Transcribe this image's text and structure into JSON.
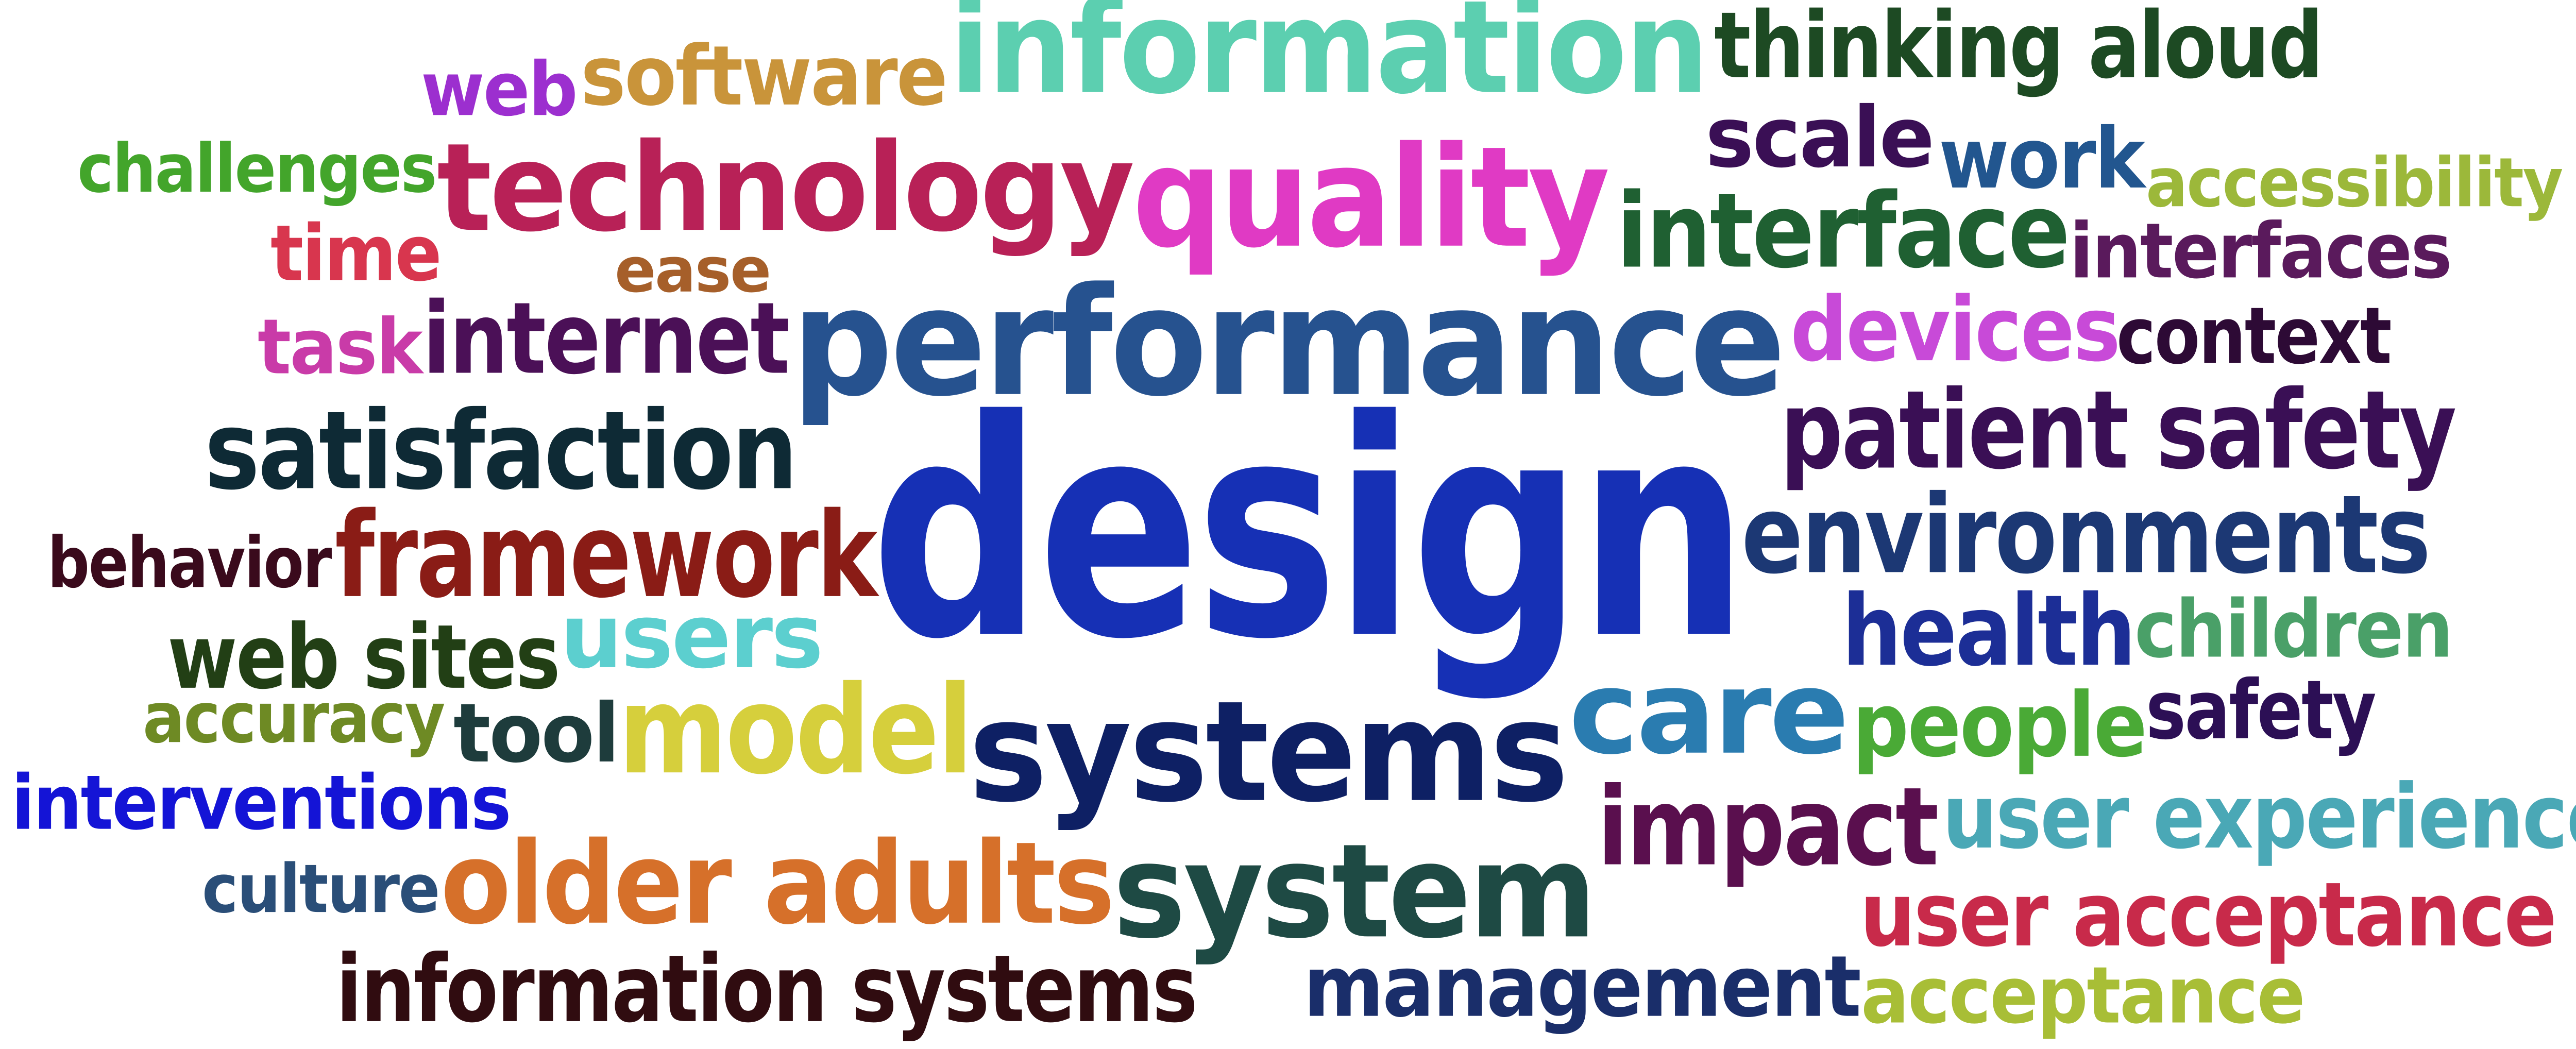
{
  "words": [
    {
      "text": "information",
      "color": "#5ccfb0"
    },
    {
      "text": "thinking aloud",
      "color": "#1d4a23"
    },
    {
      "text": "software",
      "color": "#c9943a"
    },
    {
      "text": "web",
      "color": "#9c2fcf"
    },
    {
      "text": "scale",
      "color": "#3a0f55"
    },
    {
      "text": "work",
      "color": "#22568f"
    },
    {
      "text": "accessibility",
      "color": "#9cb83a"
    },
    {
      "text": "challenges",
      "color": "#43a52b"
    },
    {
      "text": "technology",
      "color": "#b82157"
    },
    {
      "text": "quality",
      "color": "#e03ac4"
    },
    {
      "text": "interface",
      "color": "#1f6032"
    },
    {
      "text": "interfaces",
      "color": "#5a1a5c"
    },
    {
      "text": "time",
      "color": "#d8364e"
    },
    {
      "text": "ease",
      "color": "#a65f2a"
    },
    {
      "text": "task",
      "color": "#c93ba8"
    },
    {
      "text": "internet",
      "color": "#4b1057"
    },
    {
      "text": "performance",
      "color": "#26528f"
    },
    {
      "text": "devices",
      "color": "#c84ad8"
    },
    {
      "text": "context",
      "color": "#2d0a35"
    },
    {
      "text": "satisfaction",
      "color": "#0e2a35"
    },
    {
      "text": "patient safety",
      "color": "#3a0f55"
    },
    {
      "text": "design",
      "color": "#1630b5"
    },
    {
      "text": "behavior",
      "color": "#3a0a1c"
    },
    {
      "text": "framework",
      "color": "#8a1c16"
    },
    {
      "text": "environments",
      "color": "#1c3874"
    },
    {
      "text": "web sites",
      "color": "#223f15"
    },
    {
      "text": "users",
      "color": "#5ccfcf"
    },
    {
      "text": "health",
      "color": "#1c2e96"
    },
    {
      "text": "children",
      "color": "#4aa068"
    },
    {
      "text": "accuracy",
      "color": "#6e8a24"
    },
    {
      "text": "tool",
      "color": "#1e3c3c"
    },
    {
      "text": "model",
      "color": "#d6cf3c"
    },
    {
      "text": "systems",
      "color": "#0e2064"
    },
    {
      "text": "care",
      "color": "#2a7cb0"
    },
    {
      "text": "people",
      "color": "#4aaa36"
    },
    {
      "text": "safety",
      "color": "#2c0f55"
    },
    {
      "text": "interventions",
      "color": "#1414d6"
    },
    {
      "text": "impact",
      "color": "#5a0f4e"
    },
    {
      "text": "user experience",
      "color": "#4aa8b6"
    },
    {
      "text": "culture",
      "color": "#2a4e78"
    },
    {
      "text": "older adults",
      "color": "#d6702a"
    },
    {
      "text": "system",
      "color": "#1e4a44"
    },
    {
      "text": "user acceptance",
      "color": "#c82a4a"
    },
    {
      "text": "information systems",
      "color": "#300c10"
    },
    {
      "text": "management",
      "color": "#1a2e6a"
    },
    {
      "text": "acceptance",
      "color": "#a8be36"
    }
  ]
}
